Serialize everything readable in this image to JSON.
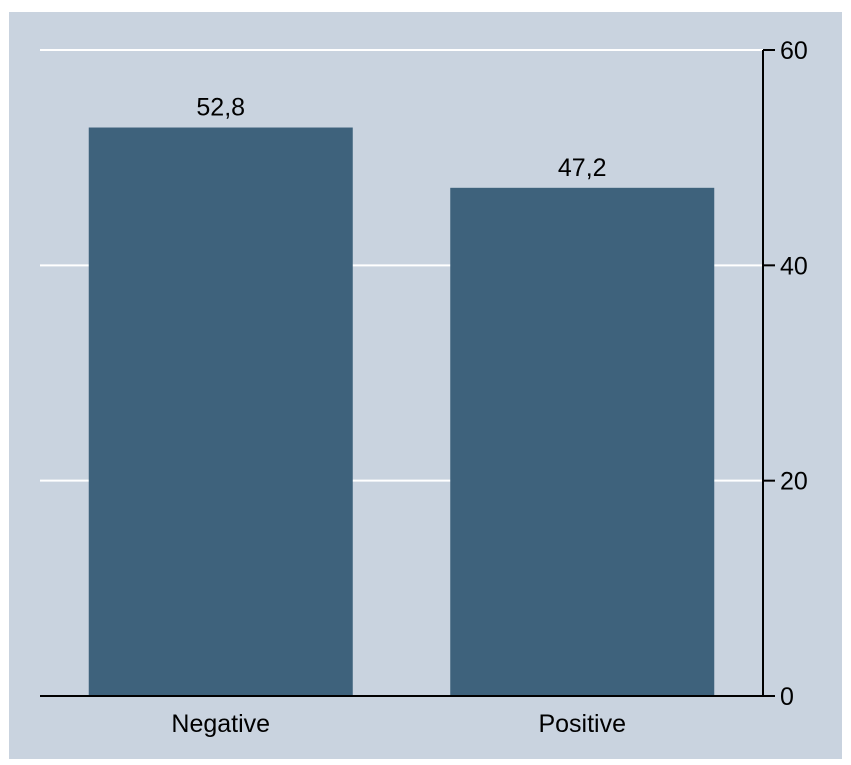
{
  "chart_data": {
    "type": "bar",
    "title": "",
    "xlabel": "",
    "ylabel": "",
    "categories": [
      "Negative",
      "Positive"
    ],
    "values": [
      52.8,
      47.2
    ],
    "value_labels": [
      "52,8",
      "47,2"
    ],
    "ylim": [
      0,
      60
    ],
    "yticks": [
      0,
      20,
      40,
      60
    ],
    "ytick_labels": [
      "0",
      "20",
      "40",
      "60"
    ],
    "y_axis_side": "right",
    "grid": true,
    "legend": "none"
  },
  "colors": {
    "plot_background": "#c9d3df",
    "bar": "#3e627c",
    "gridline": "#ffffff",
    "axis": "#000000",
    "text": "#000000"
  }
}
